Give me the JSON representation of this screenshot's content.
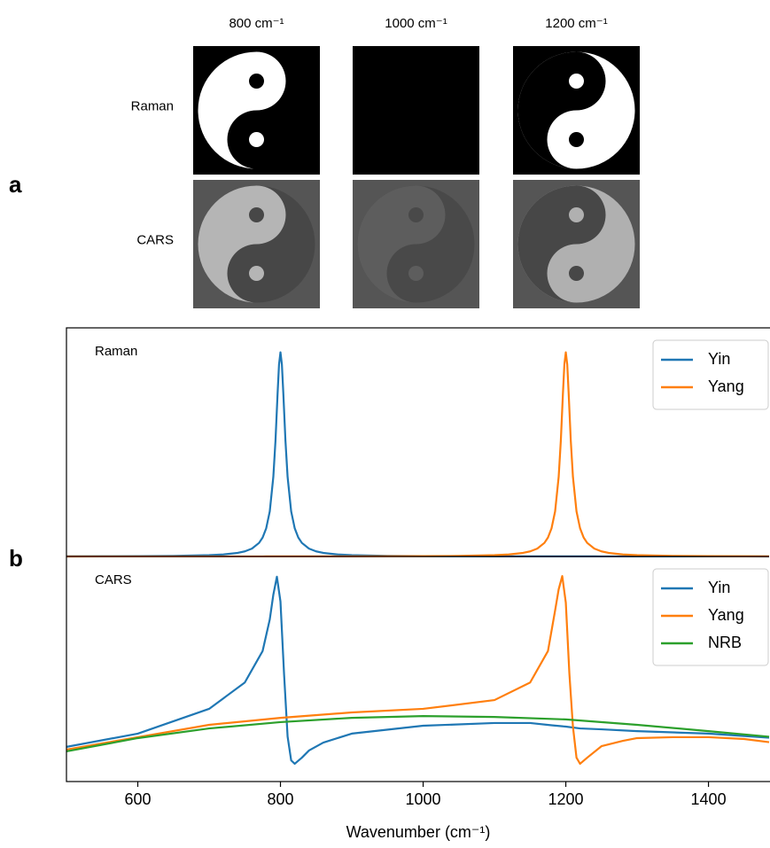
{
  "panel_labels": [
    "a",
    "b"
  ],
  "images": {
    "columns": [
      "800 cm⁻¹",
      "1000 cm⁻¹",
      "1200 cm⁻¹"
    ],
    "rows": [
      "Raman",
      "CARS"
    ]
  },
  "chart_data": {
    "type": "line",
    "xlabel": "Wavenumber (cm⁻¹)",
    "xlim": [
      500,
      1485
    ],
    "xticks": [
      600,
      800,
      1000,
      1200,
      1400
    ],
    "panels": [
      {
        "label": "Raman",
        "ylim": [
          0,
          1.12
        ],
        "legend": "upper right",
        "x": [
          500,
          550,
          600,
          650,
          700,
          720,
          740,
          750,
          760,
          770,
          775,
          780,
          785,
          790,
          793,
          796,
          798,
          800,
          802,
          804,
          807,
          810,
          815,
          820,
          825,
          830,
          840,
          850,
          860,
          880,
          900,
          950,
          1000,
          1050,
          1100,
          1120,
          1140,
          1150,
          1160,
          1170,
          1175,
          1180,
          1185,
          1190,
          1193,
          1196,
          1198,
          1200,
          1202,
          1204,
          1207,
          1210,
          1215,
          1220,
          1225,
          1230,
          1240,
          1250,
          1260,
          1280,
          1300,
          1350,
          1400,
          1450,
          1485
        ],
        "series": [
          {
            "name": "Yin",
            "color": "#1f77b4",
            "values": [
              0.0007,
              0.001,
              0.0016,
              0.0028,
              0.0064,
              0.0099,
              0.0175,
              0.025,
              0.0385,
              0.0664,
              0.0929,
              0.138,
              0.221,
              0.39,
              0.566,
              0.8,
              0.941,
              1,
              0.941,
              0.8,
              0.566,
              0.39,
              0.221,
              0.138,
              0.0929,
              0.0664,
              0.0385,
              0.025,
              0.0175,
              0.0099,
              0.0064,
              0.0028,
              0.0016,
              0.001,
              0.0007,
              0.0006,
              0.0005,
              0.0005,
              0.0005,
              0.0004,
              0.0004,
              0.0004,
              0.0004,
              0.0004,
              0.0004,
              0.0004,
              0.0004,
              0.0004,
              0.0004,
              0.0004,
              0.0004,
              0.0004,
              0.0004,
              0.0004,
              0.0004,
              0.0004,
              0.0004,
              0.0003,
              0.0003,
              0.0003,
              0.0003,
              0.0003,
              0.0003,
              0.0002,
              0.0001
            ]
          },
          {
            "name": "Yang",
            "color": "#ff7f0e",
            "values": [
              0.0001,
              0.0002,
              0.0002,
              0.0002,
              0.0003,
              0.0003,
              0.0003,
              0.0003,
              0.0003,
              0.0003,
              0.0003,
              0.0004,
              0.0004,
              0.0004,
              0.0004,
              0.0004,
              0.0004,
              0.0004,
              0.0004,
              0.0004,
              0.0004,
              0.0004,
              0.0004,
              0.0004,
              0.0004,
              0.0004,
              0.0004,
              0.0004,
              0.0005,
              0.0005,
              0.0007,
              0.001,
              0.0016,
              0.0028,
              0.0064,
              0.0099,
              0.0175,
              0.025,
              0.0385,
              0.0664,
              0.0929,
              0.138,
              0.221,
              0.39,
              0.566,
              0.8,
              0.941,
              1,
              0.941,
              0.8,
              0.566,
              0.39,
              0.221,
              0.138,
              0.0929,
              0.0664,
              0.0385,
              0.025,
              0.0175,
              0.0099,
              0.0064,
              0.0028,
              0.0016,
              0.001,
              0.0008
            ]
          }
        ]
      },
      {
        "label": "CARS",
        "ylim": [
          0,
          1
        ],
        "legend": "upper right",
        "series": [
          {
            "name": "Yin",
            "color": "#1f77b4",
            "x": [
              500,
              600,
              700,
              750,
              775,
              785,
              790,
              795,
              800,
              805,
              810,
              815,
              820,
              830,
              840,
              860,
              900,
              1000,
              1100,
              1150,
              1180,
              1200,
              1220,
              1250,
              1300,
              1400,
              1485
            ],
            "values": [
              0.154,
              0.213,
              0.323,
              0.44,
              0.58,
              0.72,
              0.83,
              0.91,
              0.8,
              0.48,
              0.2,
              0.094,
              0.079,
              0.106,
              0.138,
              0.173,
              0.213,
              0.248,
              0.26,
              0.26,
              0.25,
              0.244,
              0.236,
              0.232,
              0.224,
              0.213,
              0.195
            ]
          },
          {
            "name": "Yang",
            "color": "#ff7f0e",
            "x": [
              500,
              600,
              700,
              800,
              900,
              1000,
              1100,
              1150,
              1175,
              1185,
              1190,
              1195,
              1200,
              1205,
              1210,
              1215,
              1220,
              1230,
              1250,
              1280,
              1300,
              1350,
              1400,
              1450,
              1485
            ],
            "values": [
              0.142,
              0.197,
              0.252,
              0.283,
              0.307,
              0.323,
              0.362,
              0.44,
              0.58,
              0.76,
              0.854,
              0.913,
              0.795,
              0.48,
              0.244,
              0.106,
              0.079,
              0.106,
              0.157,
              0.181,
              0.193,
              0.197,
              0.197,
              0.189,
              0.175
            ]
          },
          {
            "name": "NRB",
            "color": "#2ca02c",
            "x": [
              500,
              600,
              700,
              800,
              900,
              1000,
              1100,
              1200,
              1300,
              1400,
              1485
            ],
            "values": [
              0.134,
              0.193,
              0.236,
              0.264,
              0.283,
              0.291,
              0.287,
              0.276,
              0.252,
              0.224,
              0.199
            ]
          }
        ]
      }
    ]
  }
}
